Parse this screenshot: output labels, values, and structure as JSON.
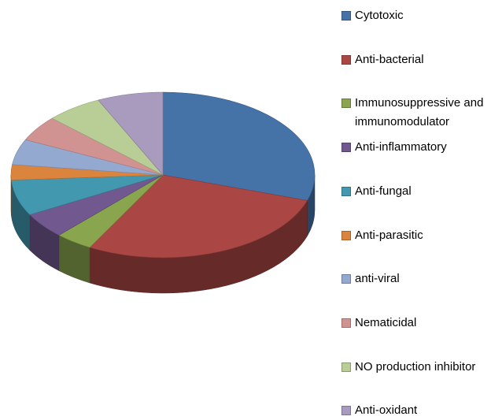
{
  "chart_data": {
    "type": "pie3d",
    "categories": [
      "Cytotoxic",
      "Anti-bacterial",
      "Immunosuppressive and immunomodulator",
      "Anti-inflammatory",
      "Anti-fungal",
      "Anti-parasitic",
      "anti-viral",
      "Nematicidal",
      "NO production inhibitor",
      "Anti-oxidant"
    ],
    "values": [
      30,
      28,
      4,
      5,
      7,
      3,
      5,
      5,
      6,
      7
    ],
    "colors": [
      "#4572a7",
      "#aa4643",
      "#89a54e",
      "#71588f",
      "#4198af",
      "#db843d",
      "#93a9cf",
      "#d19392",
      "#b9cd96",
      "#a99bbd"
    ],
    "legend": "right"
  }
}
